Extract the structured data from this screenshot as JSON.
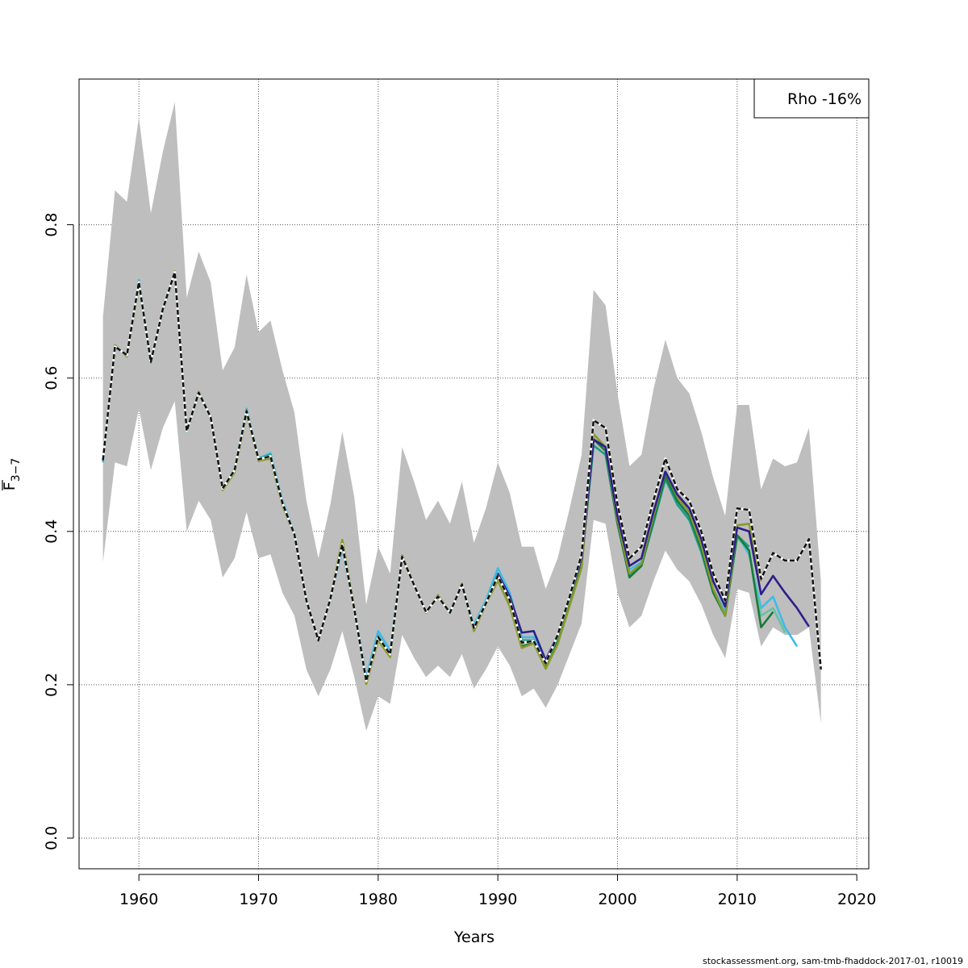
{
  "chart_data": {
    "type": "line",
    "title": "",
    "xlabel": "Years",
    "ylabel_main": "F",
    "ylabel_sub": "3−7",
    "xlim": [
      1955,
      2021
    ],
    "ylim": [
      -0.04,
      0.99
    ],
    "x_ticks": [
      1960,
      1970,
      1980,
      1990,
      2000,
      2010,
      2020
    ],
    "y_ticks": [
      0.0,
      0.2,
      0.4,
      0.6,
      0.8
    ],
    "y_tick_labels": [
      "0.0",
      "0.2",
      "0.4",
      "0.6",
      "0.8"
    ],
    "grid": true,
    "legend": {
      "position": "top-right",
      "text": "Rho -16%"
    },
    "band": {
      "color": "#bebebe",
      "x": [
        1957,
        1958,
        1959,
        1960,
        1961,
        1962,
        1963,
        1964,
        1965,
        1966,
        1967,
        1968,
        1969,
        1970,
        1971,
        1972,
        1973,
        1974,
        1975,
        1976,
        1977,
        1978,
        1979,
        1980,
        1981,
        1982,
        1983,
        1984,
        1985,
        1986,
        1987,
        1988,
        1989,
        1990,
        1991,
        1992,
        1993,
        1994,
        1995,
        1996,
        1997,
        1998,
        1999,
        2000,
        2001,
        2002,
        2003,
        2004,
        2005,
        2006,
        2007,
        2008,
        2009,
        2010,
        2011,
        2012,
        2013,
        2014,
        2015,
        2016,
        2017
      ],
      "upper": [
        0.68,
        0.845,
        0.83,
        0.94,
        0.815,
        0.895,
        0.96,
        0.705,
        0.765,
        0.725,
        0.61,
        0.64,
        0.735,
        0.66,
        0.675,
        0.61,
        0.555,
        0.44,
        0.365,
        0.435,
        0.53,
        0.445,
        0.305,
        0.38,
        0.345,
        0.51,
        0.465,
        0.415,
        0.44,
        0.41,
        0.465,
        0.385,
        0.43,
        0.49,
        0.45,
        0.38,
        0.38,
        0.325,
        0.365,
        0.43,
        0.5,
        0.715,
        0.695,
        0.58,
        0.485,
        0.5,
        0.585,
        0.65,
        0.6,
        0.58,
        0.53,
        0.47,
        0.42,
        0.565,
        0.565,
        0.455,
        0.495,
        0.485,
        0.49,
        0.535,
        0.335
      ],
      "lower": [
        0.36,
        0.49,
        0.485,
        0.56,
        0.48,
        0.535,
        0.57,
        0.4,
        0.44,
        0.415,
        0.34,
        0.365,
        0.425,
        0.365,
        0.37,
        0.32,
        0.29,
        0.22,
        0.185,
        0.22,
        0.27,
        0.21,
        0.14,
        0.185,
        0.175,
        0.265,
        0.235,
        0.21,
        0.225,
        0.21,
        0.24,
        0.195,
        0.22,
        0.25,
        0.225,
        0.185,
        0.195,
        0.17,
        0.2,
        0.24,
        0.28,
        0.415,
        0.41,
        0.32,
        0.275,
        0.29,
        0.335,
        0.375,
        0.35,
        0.335,
        0.305,
        0.265,
        0.235,
        0.325,
        0.32,
        0.25,
        0.275,
        0.265,
        0.265,
        0.275,
        0.15
      ]
    },
    "series": [
      {
        "color": "#3dbbe8",
        "dashed": false,
        "x": [
          1957,
          1958,
          1959,
          1960,
          1961,
          1962,
          1963,
          1964,
          1965,
          1966,
          1967,
          1968,
          1969,
          1970,
          1971,
          1972,
          1973,
          1974,
          1975,
          1976,
          1977,
          1978,
          1979,
          1980,
          1981,
          1982,
          1983,
          1984,
          1985,
          1986,
          1987,
          1988,
          1989,
          1990,
          1991,
          1992,
          1993,
          1994,
          1995,
          1996,
          1997,
          1998,
          1999,
          2000,
          2001,
          2002,
          2003,
          2004,
          2005,
          2006,
          2007,
          2008,
          2009,
          2010,
          2011,
          2012,
          2013,
          2014,
          2015
        ],
        "values": [
          0.49,
          0.64,
          0.63,
          0.728,
          0.62,
          0.69,
          0.738,
          0.53,
          0.58,
          0.55,
          0.455,
          0.48,
          0.56,
          0.495,
          0.502,
          0.44,
          0.397,
          0.31,
          0.258,
          0.312,
          0.378,
          0.3,
          0.21,
          0.27,
          0.245,
          0.368,
          0.33,
          0.295,
          0.315,
          0.295,
          0.33,
          0.278,
          0.31,
          0.352,
          0.32,
          0.262,
          0.262,
          0.23,
          0.262,
          0.31,
          0.36,
          0.52,
          0.51,
          0.415,
          0.35,
          0.36,
          0.415,
          0.47,
          0.44,
          0.42,
          0.38,
          0.325,
          0.295,
          0.395,
          0.37,
          0.3,
          0.315,
          0.275,
          0.25
        ]
      },
      {
        "color": "#66c2a5",
        "dashed": false,
        "x": [
          2009,
          2010,
          2011,
          2012,
          2013,
          2014
        ],
        "values": [
          0.29,
          0.392,
          0.375,
          0.29,
          0.3,
          0.268
        ]
      },
      {
        "color": "#1a9c8c",
        "dashed": false,
        "x": [
          1957,
          1958,
          1959,
          1960,
          1961,
          1962,
          1963,
          1964,
          1965,
          1966,
          1967,
          1968,
          1969,
          1970,
          1971,
          1972,
          1973,
          1974,
          1975,
          1976,
          1977,
          1978,
          1979,
          1980,
          1981,
          1982,
          1983,
          1984,
          1985,
          1986,
          1987,
          1988,
          1989,
          1990,
          1991,
          1992,
          1993,
          1994,
          1995,
          1996,
          1997,
          1998,
          1999,
          2000,
          2001,
          2002,
          2003,
          2004,
          2005,
          2006,
          2007,
          2008,
          2009,
          2010,
          2011
        ],
        "values": [
          0.492,
          0.641,
          0.63,
          0.726,
          0.621,
          0.689,
          0.737,
          0.531,
          0.581,
          0.549,
          0.456,
          0.481,
          0.558,
          0.495,
          0.5,
          0.438,
          0.396,
          0.309,
          0.258,
          0.311,
          0.381,
          0.298,
          0.206,
          0.264,
          0.24,
          0.367,
          0.33,
          0.295,
          0.315,
          0.294,
          0.331,
          0.275,
          0.306,
          0.345,
          0.312,
          0.258,
          0.258,
          0.226,
          0.258,
          0.307,
          0.357,
          0.512,
          0.5,
          0.41,
          0.342,
          0.355,
          0.41,
          0.468,
          0.435,
          0.415,
          0.373,
          0.32,
          0.29,
          0.395,
          0.38
        ]
      },
      {
        "color": "#1b7a3a",
        "dashed": false,
        "x": [
          1957,
          1958,
          1959,
          1960,
          1961,
          1962,
          1963,
          1964,
          1965,
          1966,
          1967,
          1968,
          1969,
          1970,
          1971,
          1972,
          1973,
          1974,
          1975,
          1976,
          1977,
          1978,
          1979,
          1980,
          1981,
          1982,
          1983,
          1984,
          1985,
          1986,
          1987,
          1988,
          1989,
          1990,
          1991,
          1992,
          1993,
          1994,
          1995,
          1996,
          1997,
          1998,
          1999,
          2000,
          2001,
          2002,
          2003,
          2004,
          2005,
          2006,
          2007,
          2008,
          2009,
          2010,
          2011,
          2012,
          2013
        ],
        "values": [
          0.493,
          0.642,
          0.629,
          0.724,
          0.621,
          0.689,
          0.738,
          0.531,
          0.582,
          0.549,
          0.455,
          0.479,
          0.556,
          0.493,
          0.497,
          0.436,
          0.396,
          0.31,
          0.258,
          0.312,
          0.385,
          0.3,
          0.204,
          0.26,
          0.238,
          0.368,
          0.33,
          0.294,
          0.316,
          0.294,
          0.331,
          0.272,
          0.306,
          0.34,
          0.306,
          0.25,
          0.255,
          0.222,
          0.255,
          0.305,
          0.355,
          0.52,
          0.505,
          0.41,
          0.34,
          0.355,
          0.415,
          0.472,
          0.44,
          0.42,
          0.378,
          0.32,
          0.29,
          0.395,
          0.375,
          0.275,
          0.295
        ]
      },
      {
        "color": "#8a9a2a",
        "dashed": false,
        "x": [
          1957,
          1958,
          1959,
          1960,
          1961,
          1962,
          1963,
          1964,
          1965,
          1966,
          1967,
          1968,
          1969,
          1970,
          1971,
          1972,
          1973,
          1974,
          1975,
          1976,
          1977,
          1978,
          1979,
          1980,
          1981,
          1982,
          1983,
          1984,
          1985,
          1986,
          1987,
          1988,
          1989,
          1990,
          1991,
          1992,
          1993,
          1994,
          1995,
          1996,
          1997,
          1998,
          1999,
          2000,
          2001,
          2002,
          2003,
          2004,
          2005,
          2006,
          2007,
          2008,
          2009,
          2010,
          2011,
          2012
        ],
        "values": [
          0.494,
          0.643,
          0.628,
          0.722,
          0.622,
          0.689,
          0.739,
          0.532,
          0.582,
          0.549,
          0.454,
          0.477,
          0.554,
          0.492,
          0.495,
          0.434,
          0.395,
          0.31,
          0.257,
          0.313,
          0.389,
          0.301,
          0.201,
          0.258,
          0.236,
          0.369,
          0.33,
          0.294,
          0.317,
          0.294,
          0.332,
          0.27,
          0.305,
          0.336,
          0.302,
          0.248,
          0.254,
          0.221,
          0.253,
          0.303,
          0.353,
          0.527,
          0.51,
          0.415,
          0.345,
          0.358,
          0.42,
          0.478,
          0.445,
          0.425,
          0.383,
          0.325,
          0.29,
          0.408,
          0.41,
          0.335
        ]
      },
      {
        "color": "#2d1e8a",
        "dashed": false,
        "x": [
          1990,
          1991,
          1992,
          1993,
          1994,
          1995,
          1996,
          1997,
          1998,
          1999,
          2000,
          2001,
          2002,
          2003,
          2004,
          2005,
          2006,
          2007,
          2008,
          2009,
          2010,
          2011,
          2012,
          2013,
          2014,
          2015,
          2016
        ],
        "values": [
          0.345,
          0.315,
          0.268,
          0.27,
          0.232,
          0.265,
          0.315,
          0.365,
          0.52,
          0.51,
          0.42,
          0.355,
          0.365,
          0.425,
          0.478,
          0.448,
          0.43,
          0.39,
          0.335,
          0.302,
          0.405,
          0.4,
          0.318,
          0.342,
          0.32,
          0.3,
          0.276
        ]
      },
      {
        "color": "#111111",
        "dashed": true,
        "x": [
          1957,
          1958,
          1959,
          1960,
          1961,
          1962,
          1963,
          1964,
          1965,
          1966,
          1967,
          1968,
          1969,
          1970,
          1971,
          1972,
          1973,
          1974,
          1975,
          1976,
          1977,
          1978,
          1979,
          1980,
          1981,
          1982,
          1983,
          1984,
          1985,
          1986,
          1987,
          1988,
          1989,
          1990,
          1991,
          1992,
          1993,
          1994,
          1995,
          1996,
          1997,
          1998,
          1999,
          2000,
          2001,
          2002,
          2003,
          2004,
          2005,
          2006,
          2007,
          2008,
          2009,
          2010,
          2011,
          2012,
          2013,
          2014,
          2015,
          2016,
          2017
        ],
        "values": [
          0.493,
          0.641,
          0.63,
          0.725,
          0.621,
          0.69,
          0.738,
          0.531,
          0.581,
          0.549,
          0.456,
          0.48,
          0.557,
          0.494,
          0.498,
          0.437,
          0.396,
          0.31,
          0.258,
          0.312,
          0.383,
          0.299,
          0.205,
          0.262,
          0.24,
          0.367,
          0.33,
          0.295,
          0.315,
          0.294,
          0.331,
          0.274,
          0.306,
          0.342,
          0.31,
          0.255,
          0.257,
          0.228,
          0.265,
          0.315,
          0.37,
          0.545,
          0.535,
          0.435,
          0.365,
          0.38,
          0.44,
          0.495,
          0.455,
          0.44,
          0.4,
          0.345,
          0.31,
          0.43,
          0.428,
          0.338,
          0.372,
          0.362,
          0.362,
          0.39,
          0.22
        ]
      }
    ]
  },
  "footer": {
    "text": "stockassessment.org, sam-tmb-fhaddock-2017-01, r10019"
  }
}
